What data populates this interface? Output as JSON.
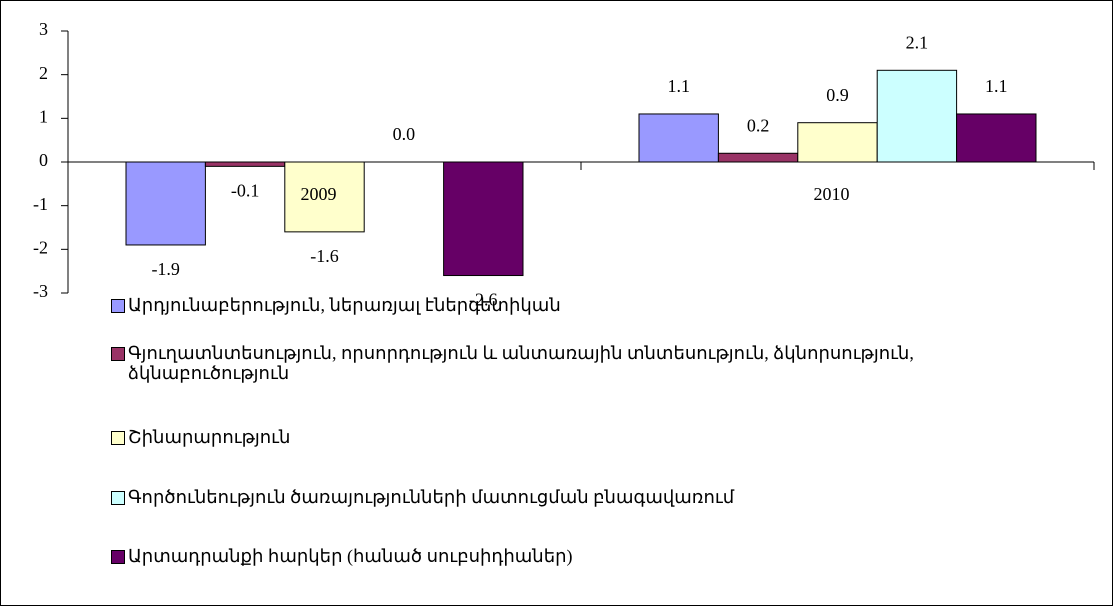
{
  "chart_data": {
    "type": "bar",
    "categories": [
      "2009",
      "2010"
    ],
    "series": [
      {
        "name": "Արդյունաբերություն, ներառյալ էներգետիկան",
        "color": "#9999ff",
        "values": [
          -1.9,
          1.1
        ],
        "value_labels": [
          "-1.9",
          "1.1"
        ]
      },
      {
        "name": "Գյուղատնտեսություն, որսորդություն և անտառային տնտեսություն, ձկնորսություն, ձկնաբուծություն",
        "color": "#993366",
        "values": [
          -0.1,
          0.2
        ],
        "value_labels": [
          "-0.1",
          "0.2"
        ]
      },
      {
        "name": "Շինարարություն",
        "color": "#ffffcc",
        "values": [
          -1.6,
          0.9
        ],
        "value_labels": [
          "-1.6",
          "0.9"
        ]
      },
      {
        "name": "Գործունեություն ծառայությունների մատուցման բնագավառում",
        "color": "#ccffff",
        "values": [
          0.0,
          2.1
        ],
        "value_labels": [
          "0.0",
          "2.1"
        ]
      },
      {
        "name": "Արտադրանքի հարկեր (հանած սուբսիդիաներ)",
        "color": "#660066",
        "values": [
          -2.6,
          1.1
        ],
        "value_labels": [
          "-2.6",
          "1.1"
        ]
      }
    ],
    "ylim": [
      -3,
      3
    ],
    "yticks": [
      -3,
      -2,
      -1,
      0,
      1,
      2,
      3
    ],
    "grid": false,
    "legend": "bottom"
  }
}
